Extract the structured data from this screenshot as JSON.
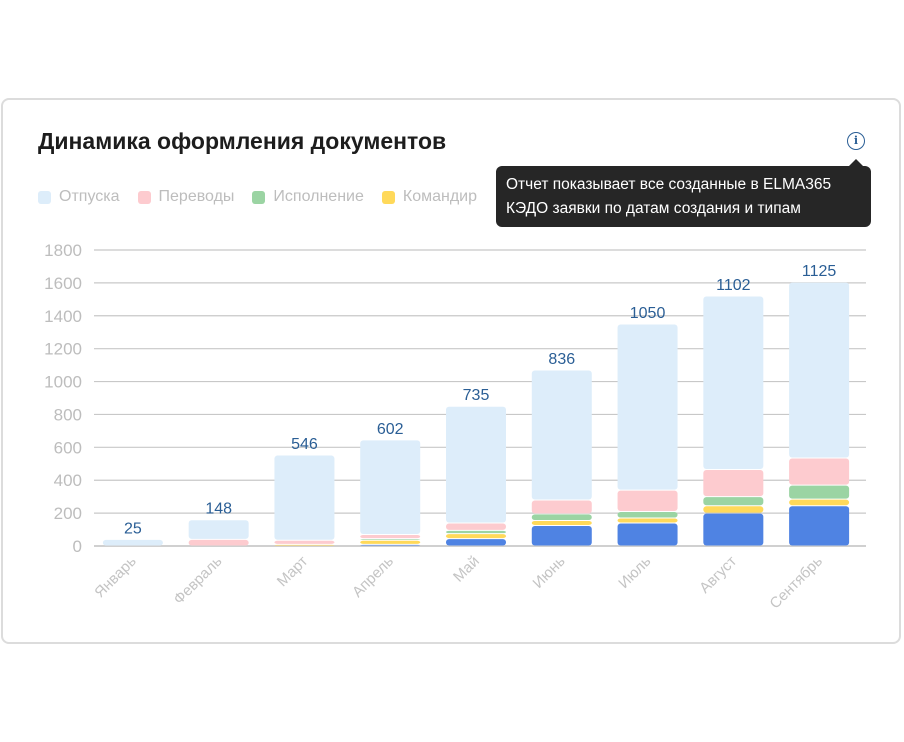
{
  "title": "Динамика оформления документов",
  "info_icon": "info-icon",
  "tooltip": {
    "line1": "Отчет показывает все созданные в ELMA365",
    "line2": "КЭДО заявки по датам создания и типам"
  },
  "chart_data": {
    "type": "bar",
    "stacked": true,
    "grid": true,
    "legend_position": "top-left",
    "categories": [
      "Январь",
      "Февраль",
      "Март",
      "Апрель",
      "Май",
      "Июнь",
      "Июль",
      "Август",
      "Сентябрь"
    ],
    "ylim": [
      0,
      1800
    ],
    "yticks": [
      0,
      200,
      400,
      600,
      800,
      1000,
      1200,
      1400,
      1600,
      1800
    ],
    "series": [
      {
        "name": "",
        "color": "#4f83e3",
        "values": [
          0,
          0,
          0,
          10,
          45,
          125,
          140,
          200,
          245
        ]
      },
      {
        "name": "Командир",
        "color": "#ffd95a",
        "values": [
          0,
          0,
          10,
          25,
          30,
          30,
          30,
          45,
          40
        ]
      },
      {
        "name": "Исполнение",
        "color": "#9bd4a3",
        "values": [
          0,
          0,
          0,
          10,
          20,
          40,
          40,
          55,
          85
        ]
      },
      {
        "name": "Переводы",
        "color": "#fdcbcf",
        "values": [
          0,
          40,
          25,
          25,
          45,
          85,
          130,
          165,
          165
        ]
      },
      {
        "name": "Отпуска",
        "color": "#ddedfa",
        "values": [
          40,
          120,
          518,
          575,
          710,
          790,
          1010,
          1055,
          1070
        ]
      }
    ],
    "data_labels": [
      "25",
      "148",
      "546",
      "602",
      "735",
      "836",
      "1050",
      "1102",
      "1125"
    ],
    "label_color": "#2a5e95"
  }
}
